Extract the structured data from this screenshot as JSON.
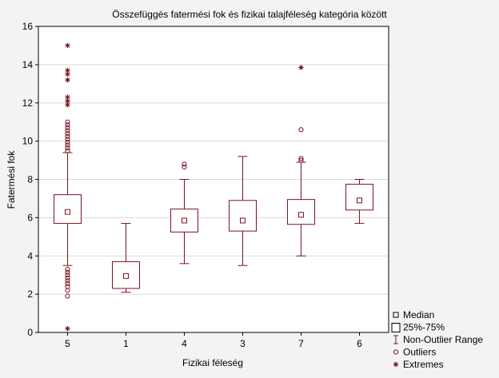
{
  "chart_data": {
    "type": "box",
    "title": "Összefüggés fatermési fok és fizikai talajféleség kategória között",
    "xlabel": "Fizikai féleség",
    "ylabel": "Fatermési fok",
    "ylim": [
      0,
      16
    ],
    "yticks": [
      "0",
      "2",
      "4",
      "6",
      "8",
      "10",
      "12",
      "14",
      "16"
    ],
    "grid": true,
    "legend_position": "bottom-right",
    "colors": {
      "box": "#7a1420",
      "grid": "#d8d8d8",
      "axis": "#000000"
    },
    "categories": [
      "5",
      "1",
      "4",
      "3",
      "7",
      "6"
    ],
    "boxes": [
      {
        "category": "5",
        "median": 6.3,
        "q1": 5.7,
        "q3": 7.2,
        "whisker_low": 3.5,
        "whisker_high": 9.4,
        "outliers": [
          1.9,
          2.2,
          2.4,
          2.55,
          2.7,
          2.85,
          3.0,
          3.15,
          3.3,
          9.5,
          9.65,
          9.8,
          9.95,
          10.1,
          10.25,
          10.4,
          10.55,
          10.7,
          10.85,
          11.0
        ],
        "extremes": [
          0.2,
          11.9,
          12.1,
          12.3,
          13.2,
          13.5,
          13.7,
          15.0
        ]
      },
      {
        "category": "1",
        "median": 2.95,
        "q1": 2.3,
        "q3": 3.7,
        "whisker_low": 2.1,
        "whisker_high": 5.7,
        "outliers": [],
        "extremes": []
      },
      {
        "category": "4",
        "median": 5.85,
        "q1": 5.25,
        "q3": 6.45,
        "whisker_low": 3.6,
        "whisker_high": 8.0,
        "outliers": [
          8.65,
          8.8
        ],
        "extremes": []
      },
      {
        "category": "3",
        "median": 5.85,
        "q1": 5.3,
        "q3": 6.9,
        "whisker_low": 3.5,
        "whisker_high": 9.2,
        "outliers": [],
        "extremes": []
      },
      {
        "category": "7",
        "median": 6.15,
        "q1": 5.65,
        "q3": 6.95,
        "whisker_low": 4.0,
        "whisker_high": 8.9,
        "outliers": [
          9.0,
          9.1,
          10.6
        ],
        "extremes": [
          13.85
        ]
      },
      {
        "category": "6",
        "median": 6.9,
        "q1": 6.4,
        "q3": 7.75,
        "whisker_low": 5.7,
        "whisker_high": 8.0,
        "outliers": [],
        "extremes": []
      }
    ],
    "legend": [
      {
        "symbol": "median",
        "label": "Median"
      },
      {
        "symbol": "box",
        "label": "25%-75%"
      },
      {
        "symbol": "whisker",
        "label": "Non-Outlier Range"
      },
      {
        "symbol": "outlier",
        "label": "Outliers"
      },
      {
        "symbol": "extreme",
        "label": "Extremes"
      }
    ]
  }
}
